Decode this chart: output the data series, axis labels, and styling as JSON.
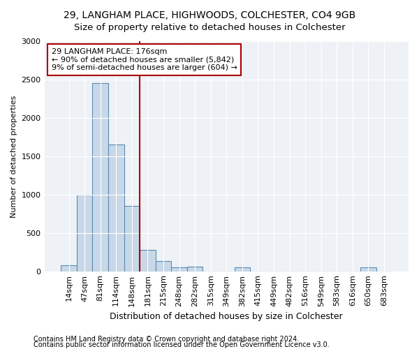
{
  "title1": "29, LANGHAM PLACE, HIGHWOODS, COLCHESTER, CO4 9GB",
  "title2": "Size of property relative to detached houses in Colchester",
  "xlabel": "Distribution of detached houses by size in Colchester",
  "ylabel": "Number of detached properties",
  "categories": [
    "14sqm",
    "47sqm",
    "81sqm",
    "114sqm",
    "148sqm",
    "181sqm",
    "215sqm",
    "248sqm",
    "282sqm",
    "315sqm",
    "349sqm",
    "382sqm",
    "415sqm",
    "449sqm",
    "482sqm",
    "516sqm",
    "549sqm",
    "583sqm",
    "616sqm",
    "650sqm",
    "683sqm"
  ],
  "values": [
    75,
    1000,
    2450,
    1650,
    850,
    280,
    130,
    55,
    60,
    0,
    0,
    55,
    0,
    0,
    0,
    0,
    0,
    0,
    0,
    55,
    0
  ],
  "bar_color": "#c8d8e8",
  "bar_edge_color": "#5a8ab0",
  "vline_color": "#aa0000",
  "annotation_text_line1": "29 LANGHAM PLACE: 176sqm",
  "annotation_text_line2": "← 90% of detached houses are smaller (5,842)",
  "annotation_text_line3": "9% of semi-detached houses are larger (604) →",
  "annotation_box_color": "white",
  "annotation_box_edge_color": "#aa0000",
  "footer1": "Contains HM Land Registry data © Crown copyright and database right 2024.",
  "footer2": "Contains public sector information licensed under the Open Government Licence v3.0.",
  "ylim": [
    0,
    3000
  ],
  "yticks": [
    0,
    500,
    1000,
    1500,
    2000,
    2500,
    3000
  ],
  "plot_bg_color": "#eef2f7",
  "title1_fontsize": 10,
  "title2_fontsize": 9.5,
  "xlabel_fontsize": 9,
  "ylabel_fontsize": 8,
  "tick_fontsize": 8,
  "footer_fontsize": 7,
  "annotation_fontsize": 8
}
